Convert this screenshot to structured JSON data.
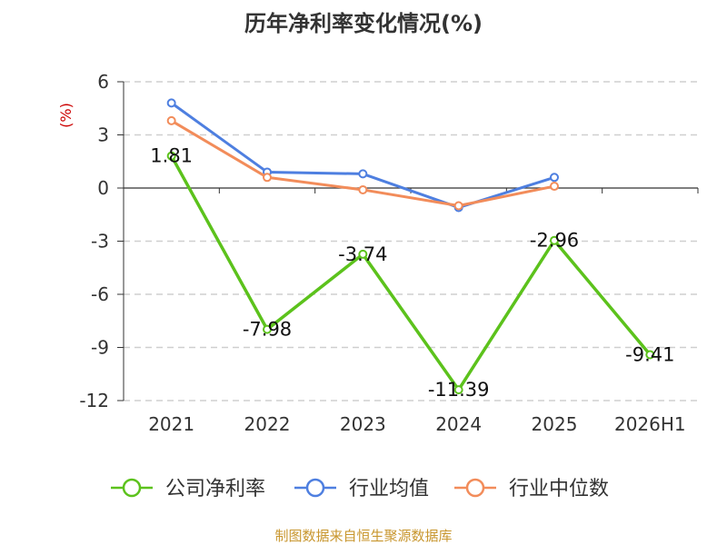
{
  "chart_data": {
    "type": "line",
    "title": "历年净利率变化情况(%)",
    "ylabel": "(%)",
    "categories": [
      "2021",
      "2022",
      "2023",
      "2024",
      "2025",
      "2026H1"
    ],
    "ylim": [
      -12,
      6
    ],
    "yticks": [
      6,
      3,
      0,
      -3,
      -6,
      -9,
      -12
    ],
    "grid": true,
    "legend_position": "bottom",
    "series": [
      {
        "name": "公司净利率",
        "color": "#5cc21c",
        "values": [
          1.81,
          -7.98,
          -3.74,
          -11.39,
          -2.96,
          -9.41
        ],
        "labels": [
          "1.81",
          "-7.98",
          "-3.74",
          "-11.39",
          "-2.96",
          "-9.41"
        ]
      },
      {
        "name": "行业均值",
        "color": "#4e7fe0",
        "values": [
          4.8,
          0.9,
          0.8,
          -1.1,
          0.6,
          null
        ]
      },
      {
        "name": "行业中位数",
        "color": "#f28c5a",
        "values": [
          3.8,
          0.6,
          -0.1,
          -1.0,
          0.1,
          null
        ]
      }
    ]
  },
  "footer": {
    "source": "制图数据来自恒生聚源数据库"
  }
}
